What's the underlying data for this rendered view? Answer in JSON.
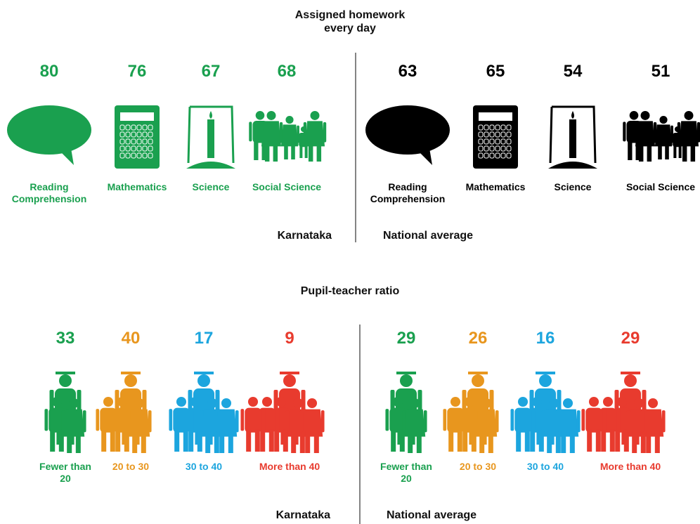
{
  "homework": {
    "title": "Assigned homework every day",
    "groups": [
      {
        "label": "Karnataka",
        "color": "#1aa04f",
        "items": [
          {
            "value": 80,
            "label": "Reading Comprehension"
          },
          {
            "value": 76,
            "label": "Mathematics"
          },
          {
            "value": 67,
            "label": "Science"
          },
          {
            "value": 68,
            "label": "Social Science"
          }
        ]
      },
      {
        "label": "National average",
        "color": "#000000",
        "items": [
          {
            "value": 63,
            "label": "Reading Comprehension"
          },
          {
            "value": 65,
            "label": "Mathematics"
          },
          {
            "value": 54,
            "label": "Science"
          },
          {
            "value": 51,
            "label": "Social Science"
          }
        ]
      }
    ]
  },
  "pupil_teacher": {
    "title": "Pupil-teacher ratio",
    "groups": [
      {
        "label": "Karnataka",
        "items": [
          {
            "value": 33,
            "label": "Fewer than 20",
            "color": "#1aa04f"
          },
          {
            "value": 40,
            "label": "20 to 30",
            "color": "#e8961e"
          },
          {
            "value": 17,
            "label": "30 to 40",
            "color": "#1ca5de"
          },
          {
            "value": 9,
            "label": "More than 40",
            "color": "#e83b2e"
          }
        ]
      },
      {
        "label": "National average",
        "items": [
          {
            "value": 29,
            "label": "Fewer than 20",
            "color": "#1aa04f"
          },
          {
            "value": 26,
            "label": "20 to 30",
            "color": "#e8961e"
          },
          {
            "value": 16,
            "label": "30 to 40",
            "color": "#1ca5de"
          },
          {
            "value": 29,
            "label": "More than 40",
            "color": "#e83b2e"
          }
        ]
      }
    ]
  }
}
